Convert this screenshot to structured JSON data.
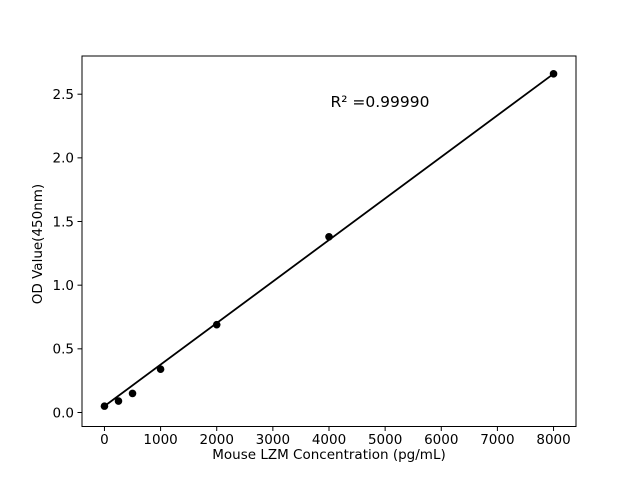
{
  "figure": {
    "background": "#ffffff",
    "text_color": "#000000"
  },
  "chart_data": {
    "type": "scatter",
    "title": "",
    "xlabel": "Mouse LZM Concentration (pg/mL)",
    "ylabel": "OD Value(450nm)",
    "x": [
      0,
      250,
      500,
      1000,
      2000,
      4000,
      8000
    ],
    "y": [
      0.05,
      0.09,
      0.15,
      0.34,
      0.69,
      1.38,
      2.66
    ],
    "fit_line": {
      "x1": 0,
      "y1": 0.05,
      "x2": 8000,
      "y2": 2.66
    },
    "annotation": {
      "text": "R² =0.99990",
      "x": 4910,
      "y": 2.42
    },
    "xticks": [
      0,
      1000,
      2000,
      3000,
      4000,
      5000,
      6000,
      7000,
      8000
    ],
    "xtick_labels": [
      "0",
      "1000",
      "2000",
      "3000",
      "4000",
      "5000",
      "6000",
      "7000",
      "8000"
    ],
    "yticks": [
      0,
      0.5,
      1.0,
      1.5,
      2.0,
      2.5
    ],
    "ytick_labels": [
      "0.0",
      "0.5",
      "1.0",
      "1.5",
      "2.0",
      "2.5"
    ],
    "xlim": [
      -400,
      8400
    ],
    "ylim": [
      -0.11,
      2.8
    ],
    "grid": false,
    "legend": false,
    "marker_color": "#000000",
    "line_color": "#000000",
    "frame_color": "#000000"
  }
}
